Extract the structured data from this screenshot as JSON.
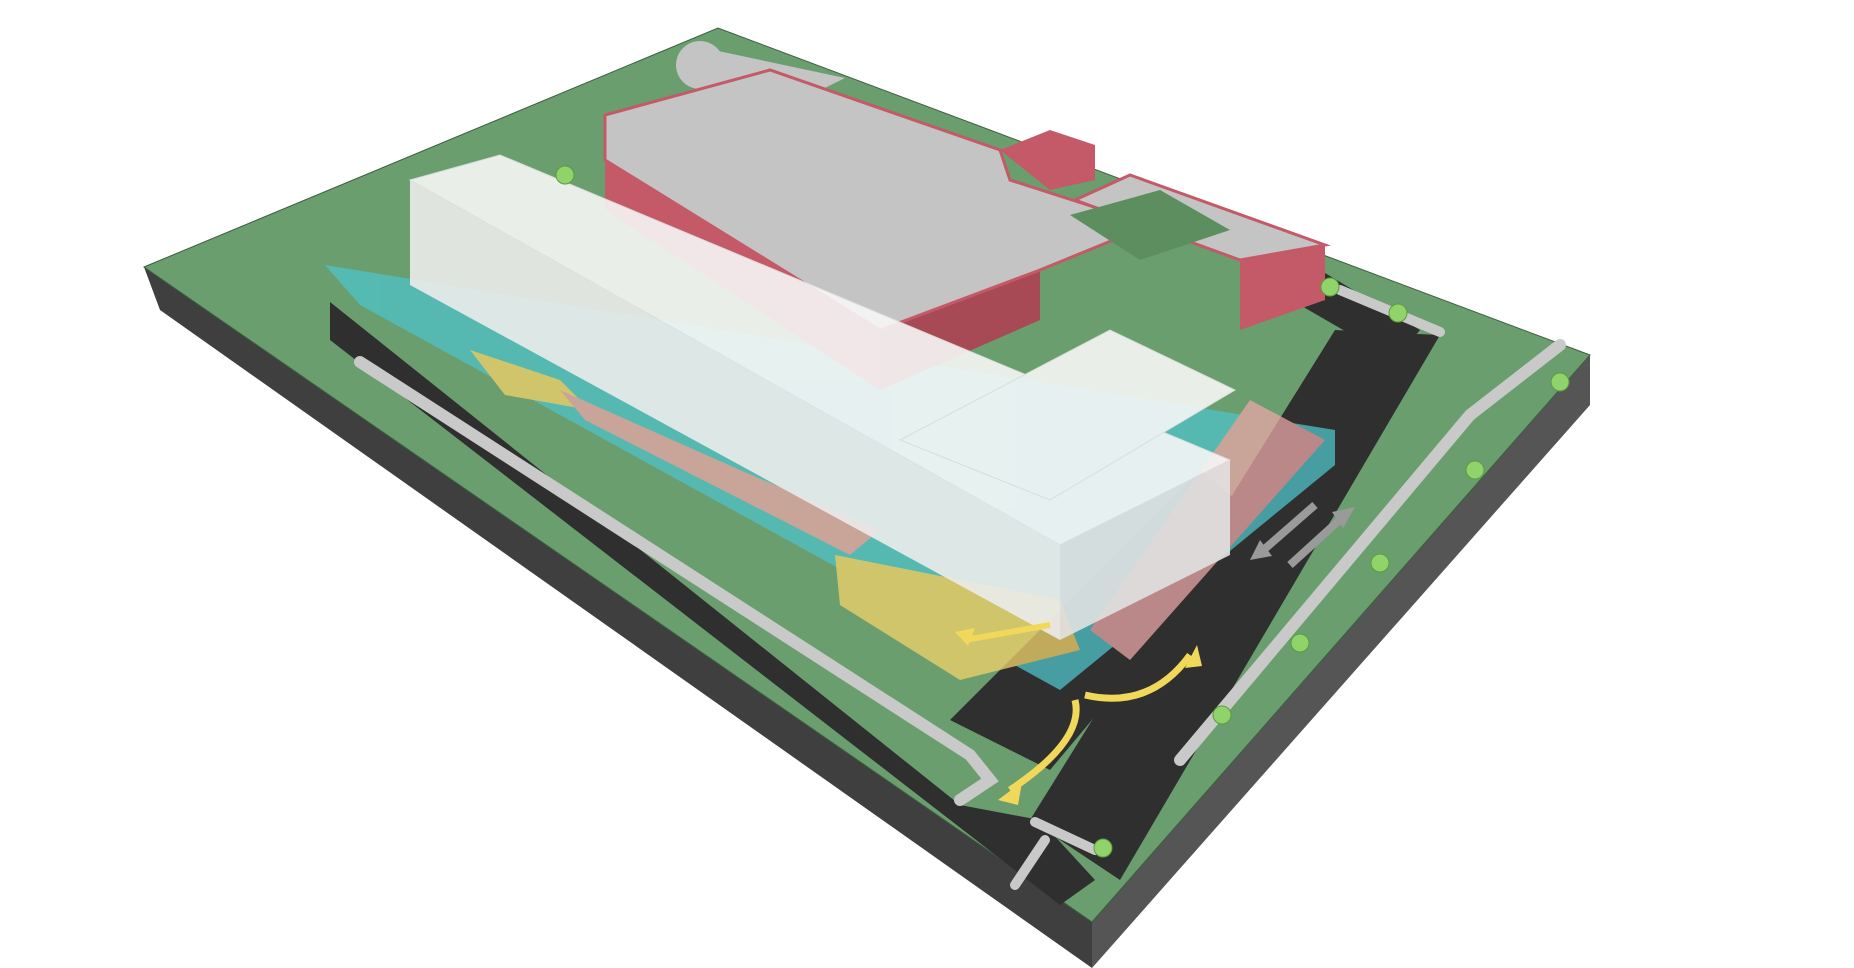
{
  "scene": {
    "kind": "isometric-site-model",
    "colors": {
      "grass": "#6a9e6e",
      "base_side_left": "#3f3f3f",
      "base_side_front": "#5a5a5a",
      "road": "#2f2f2f",
      "sidewalk": "#c9c9c9",
      "existing_wall": "#c45a67",
      "existing_roof": "#c4c4c4",
      "new_building": "#f4f4f4",
      "underground_cyan": "#4fc3c9",
      "underground_yellow": "#f2d36b",
      "underground_pink": "#e9a6a6",
      "traffic_arrow_yellow": "#f1d85a",
      "traffic_arrow_gray": "#9a9a9a",
      "tree": "#8fd36a"
    },
    "trees_count": 9,
    "arrows": [
      "access-arrow-left",
      "access-arrow-right",
      "ramp-arrow",
      "two-way-traffic-arrows"
    ]
  }
}
